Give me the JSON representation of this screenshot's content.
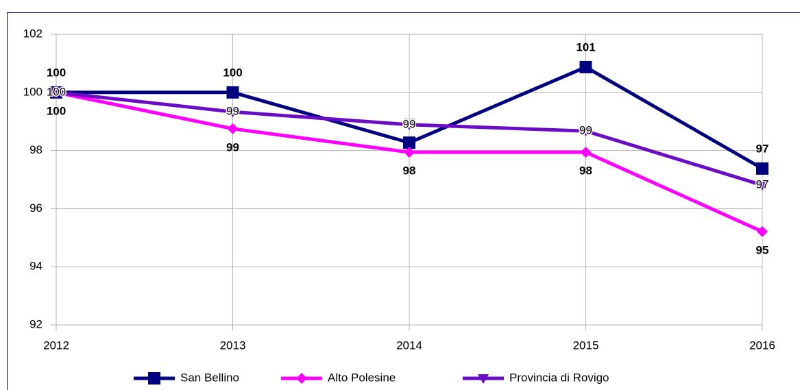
{
  "chart_data": {
    "type": "line",
    "categories": [
      "2012",
      "2013",
      "2014",
      "2015",
      "2016"
    ],
    "ylim": [
      92,
      102
    ],
    "yticks": [
      92,
      94,
      96,
      98,
      100,
      102
    ],
    "grid": true,
    "legend": "bottom",
    "series": [
      {
        "name": "San Bellino",
        "color": "#000080",
        "marker": "square",
        "values": [
          100,
          100,
          98.27,
          100.87,
          97.38
        ],
        "value_labels": [
          "100",
          "100",
          "98",
          "101",
          "97"
        ]
      },
      {
        "name": "Alto Polesine",
        "color": "#ff00ff",
        "marker": "diamond",
        "values": [
          100,
          98.75,
          97.94,
          97.94,
          95.21
        ],
        "value_labels": [
          "100",
          "99",
          "98",
          "98",
          "95"
        ]
      },
      {
        "name": "Provincia di Rovigo",
        "color": "#6a0dc4",
        "marker": "triangle-down",
        "values": [
          100,
          99.33,
          98.89,
          98.67,
          96.81
        ],
        "value_labels": [
          "100",
          "99",
          "99",
          "99",
          "97"
        ]
      }
    ]
  }
}
